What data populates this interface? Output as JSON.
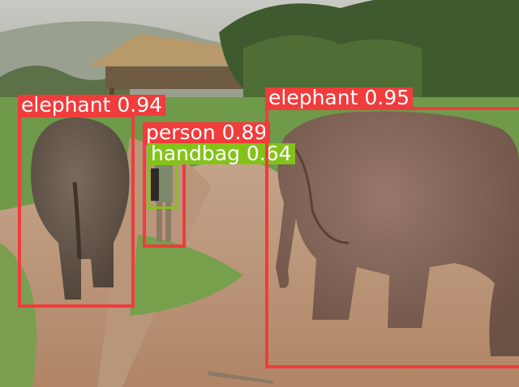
{
  "detections": [
    {
      "label": "elephant",
      "score": "0.94",
      "color": "#f03c3c"
    },
    {
      "label": "person",
      "score": "0.89",
      "color": "#f03c3c"
    },
    {
      "label": "handbag",
      "score": "0.64",
      "color": "#84c21a"
    },
    {
      "label": "elephant",
      "score": "0.95",
      "color": "#f03c3c"
    }
  ]
}
